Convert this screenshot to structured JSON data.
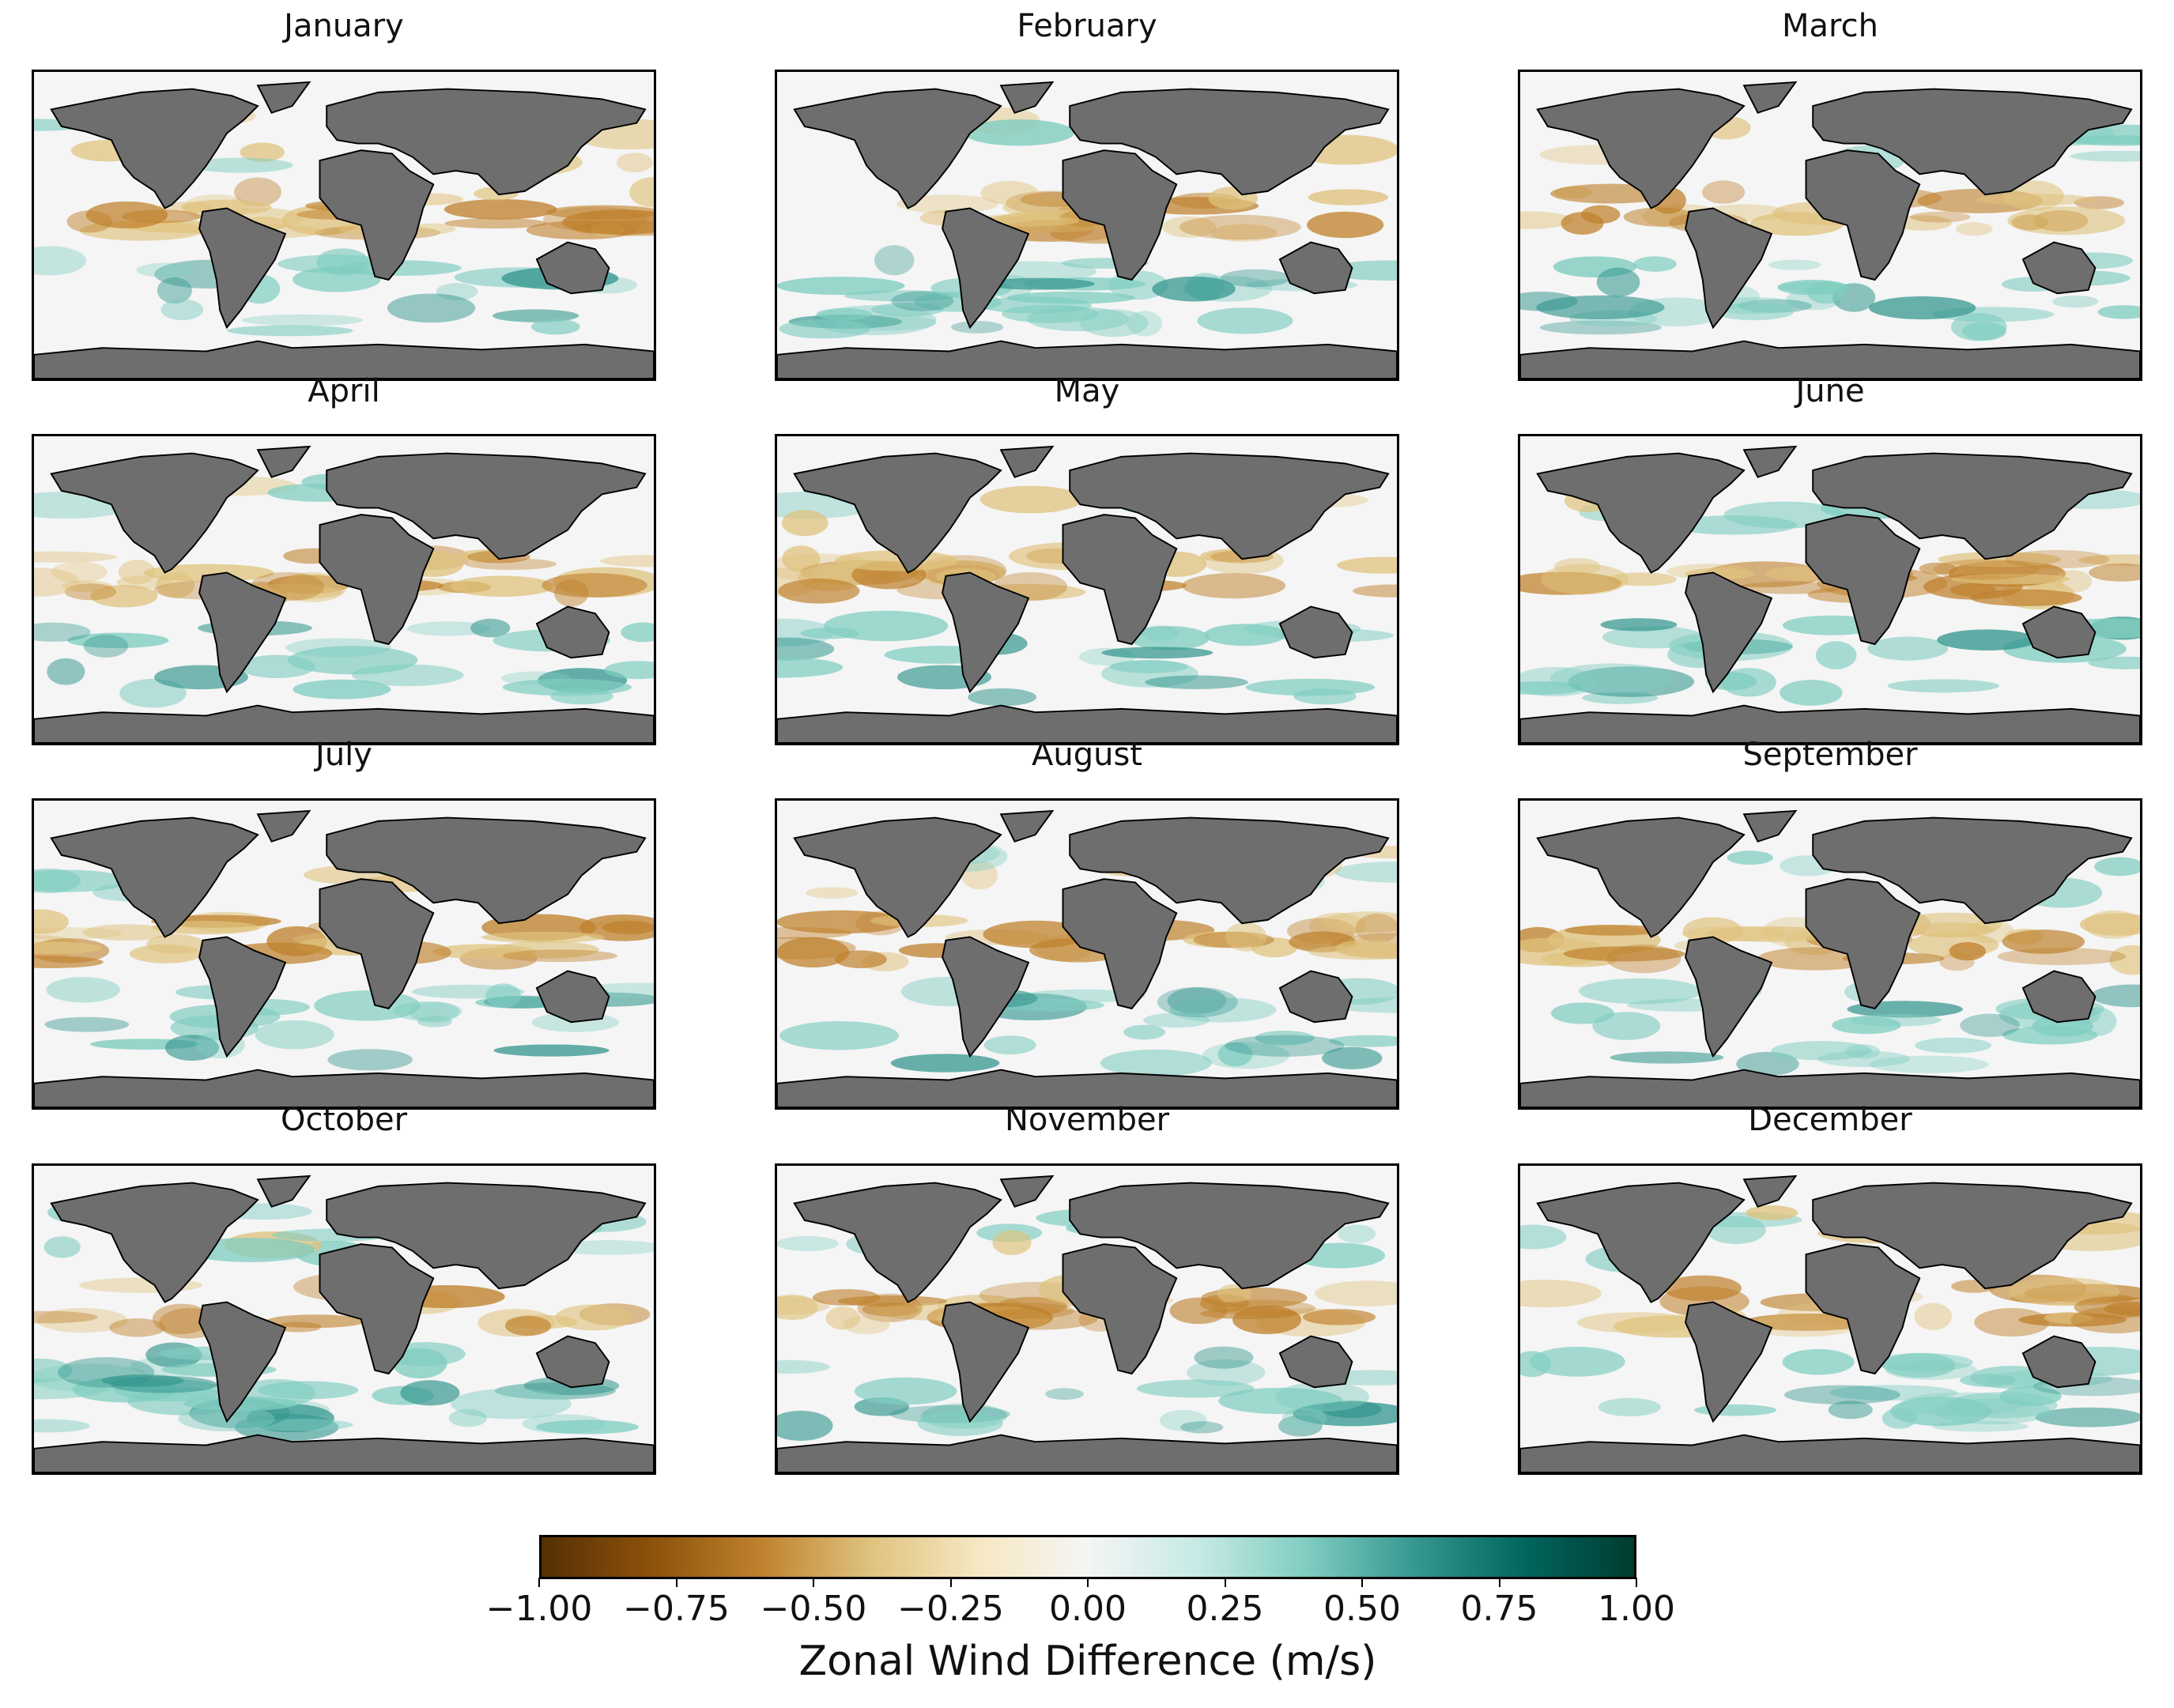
{
  "figure": {
    "panels": [
      {
        "month": "January"
      },
      {
        "month": "February"
      },
      {
        "month": "March"
      },
      {
        "month": "April"
      },
      {
        "month": "May"
      },
      {
        "month": "June"
      },
      {
        "month": "July"
      },
      {
        "month": "August"
      },
      {
        "month": "September"
      },
      {
        "month": "October"
      },
      {
        "month": "November"
      },
      {
        "month": "December"
      }
    ],
    "colorbar": {
      "label": "Zonal Wind Difference (m/s)",
      "ticks": [
        "−1.00",
        "−0.75",
        "−0.50",
        "−0.25",
        "0.00",
        "0.25",
        "0.50",
        "0.75",
        "1.00"
      ],
      "range": [
        -1.0,
        1.0
      ],
      "colormap": "BrBG",
      "colors": [
        "#543005",
        "#8c510a",
        "#bf812d",
        "#dfc27d",
        "#f6e8c3",
        "#f5f5f5",
        "#c7eae5",
        "#80cdc1",
        "#35978f",
        "#01665e",
        "#003c30"
      ]
    },
    "land_color": "#6e6e6e",
    "ocean_neutral_color": "#f5f5f5"
  }
}
